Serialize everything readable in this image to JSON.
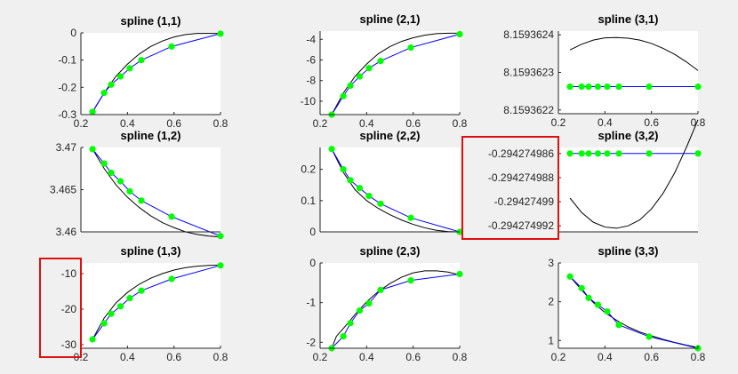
{
  "figure": {
    "background": "#f0f0f0",
    "colors": {
      "curve": "#000000",
      "interp": "#0000ff",
      "marker": "#00ff00",
      "highlight": "#e01010"
    }
  },
  "chart_data": [
    {
      "type": "line",
      "title": "spline (1,1)",
      "xlim": [
        0.2,
        0.8
      ],
      "ylim": [
        -0.3,
        0
      ],
      "xticks": [
        "0.2",
        "0.4",
        "0.6",
        "0.8"
      ],
      "xtick_values": [
        0.2,
        0.4,
        0.6,
        0.8
      ],
      "yticks": [
        "0",
        "-0.1",
        "-0.2",
        "-0.3"
      ],
      "ytick_values": [
        0,
        -0.1,
        -0.2,
        -0.3
      ],
      "series": [
        {
          "kind": "curve",
          "x": [
            0.25,
            0.3,
            0.35,
            0.4,
            0.45,
            0.5,
            0.55,
            0.6,
            0.65,
            0.7,
            0.75,
            0.8
          ],
          "y": [
            -0.29,
            -0.22,
            -0.16,
            -0.115,
            -0.078,
            -0.05,
            -0.03,
            -0.015,
            -0.006,
            -0.002,
            -0.002,
            -0.002
          ]
        },
        {
          "kind": "points",
          "x": [
            0.25,
            0.3,
            0.33,
            0.37,
            0.41,
            0.46,
            0.59,
            0.8
          ],
          "y": [
            -0.29,
            -0.22,
            -0.19,
            -0.16,
            -0.13,
            -0.1,
            -0.05,
            -0.003
          ]
        }
      ]
    },
    {
      "type": "line",
      "title": "spline (2,1)",
      "xlim": [
        0.2,
        0.8
      ],
      "ylim": [
        -11.3,
        -3.2
      ],
      "xticks": [
        "0.2",
        "0.4",
        "0.6",
        "0.8"
      ],
      "xtick_values": [
        0.2,
        0.4,
        0.6,
        0.8
      ],
      "yticks": [
        "-4",
        "-6",
        "-8",
        "-10"
      ],
      "ytick_values": [
        -4,
        -6,
        -8,
        -10
      ],
      "series": [
        {
          "kind": "curve",
          "x": [
            0.25,
            0.3,
            0.35,
            0.4,
            0.45,
            0.5,
            0.55,
            0.6,
            0.65,
            0.7,
            0.75,
            0.8
          ],
          "y": [
            -11.3,
            -9.2,
            -7.6,
            -6.4,
            -5.4,
            -4.7,
            -4.2,
            -3.85,
            -3.6,
            -3.45,
            -3.4,
            -3.4
          ]
        },
        {
          "kind": "points",
          "x": [
            0.25,
            0.3,
            0.33,
            0.37,
            0.41,
            0.46,
            0.59,
            0.8
          ],
          "y": [
            -11.3,
            -9.5,
            -8.5,
            -7.6,
            -6.8,
            -6.1,
            -4.8,
            -3.5
          ]
        }
      ]
    },
    {
      "type": "line",
      "title": "spline (3,1)",
      "xlim": [
        0.2,
        0.8
      ],
      "ylim": [
        8.15936219,
        8.15936241
      ],
      "xticks": [
        "0.2",
        "0.4",
        "0.6",
        "0.8"
      ],
      "xtick_values": [
        0.2,
        0.4,
        0.6,
        0.8
      ],
      "yticks": [
        "8.1593624",
        "8.1593623",
        "8.1593622"
      ],
      "ytick_values": [
        8.1593624,
        8.1593623,
        8.1593622
      ],
      "series": [
        {
          "kind": "curve",
          "x": [
            0.25,
            0.3,
            0.35,
            0.4,
            0.45,
            0.5,
            0.55,
            0.6,
            0.65,
            0.7,
            0.75,
            0.8
          ],
          "y": [
            8.15936236,
            8.159362375,
            8.159362386,
            8.159362392,
            8.159362393,
            8.159362391,
            8.159362386,
            8.159362377,
            8.159362364,
            8.159362348,
            8.159362328,
            8.159362305
          ]
        },
        {
          "kind": "points",
          "x": [
            0.25,
            0.3,
            0.33,
            0.37,
            0.41,
            0.46,
            0.59,
            0.8
          ],
          "y": [
            8.159362262,
            8.159362262,
            8.159362262,
            8.159362262,
            8.159362262,
            8.159362262,
            8.159362262,
            8.159362262
          ]
        }
      ]
    },
    {
      "type": "line",
      "title": "spline (1,2)",
      "xlim": [
        0.2,
        0.8
      ],
      "ylim": [
        3.46,
        3.47
      ],
      "xticks": [],
      "xtick_values": [],
      "yticks": [
        "3.47",
        "3.465",
        "3.46"
      ],
      "ytick_values": [
        3.47,
        3.465,
        3.46
      ],
      "series": [
        {
          "kind": "curve",
          "x": [
            0.25,
            0.3,
            0.35,
            0.4,
            0.45,
            0.5,
            0.55,
            0.6,
            0.65,
            0.7,
            0.75,
            0.8
          ],
          "y": [
            3.4698,
            3.4675,
            3.4656,
            3.4641,
            3.4629,
            3.4619,
            3.4611,
            3.4605,
            3.46,
            3.4597,
            3.4595,
            3.4594
          ]
        },
        {
          "kind": "points",
          "x": [
            0.25,
            0.3,
            0.33,
            0.37,
            0.41,
            0.46,
            0.59,
            0.8
          ],
          "y": [
            3.4698,
            3.4681,
            3.467,
            3.466,
            3.4648,
            3.4637,
            3.4618,
            3.4595
          ]
        }
      ]
    },
    {
      "type": "line",
      "title": "spline (2,2)",
      "xlim": [
        0.2,
        0.8
      ],
      "ylim": [
        0,
        0.27
      ],
      "xticks": [],
      "xtick_values": [],
      "yticks": [
        "0.2",
        "0.1",
        "0"
      ],
      "ytick_values": [
        0.2,
        0.1,
        0
      ],
      "series": [
        {
          "kind": "curve",
          "x": [
            0.25,
            0.3,
            0.35,
            0.4,
            0.45,
            0.5,
            0.55,
            0.6,
            0.65,
            0.7,
            0.75,
            0.8
          ],
          "y": [
            0.265,
            0.19,
            0.135,
            0.1,
            0.075,
            0.055,
            0.038,
            0.024,
            0.013,
            0.005,
            0.001,
            0.0
          ]
        },
        {
          "kind": "points",
          "x": [
            0.25,
            0.3,
            0.33,
            0.37,
            0.41,
            0.46,
            0.59,
            0.8
          ],
          "y": [
            0.265,
            0.2,
            0.165,
            0.14,
            0.115,
            0.09,
            0.045,
            0.0
          ]
        }
      ]
    },
    {
      "type": "line",
      "title": "spline (3,2)",
      "xlim": [
        0.2,
        0.8
      ],
      "ylim": [
        -0.2942749925,
        -0.2942749855
      ],
      "xticks": [],
      "xtick_values": [],
      "yticks": [
        "-0.294274986",
        "-0.294274988",
        "-0.29427499",
        "-0.294274992"
      ],
      "ytick_values": [
        -0.294274986,
        -0.294274988,
        -0.29427499,
        -0.294274992
      ],
      "series": [
        {
          "kind": "curve",
          "x": [
            0.25,
            0.3,
            0.35,
            0.4,
            0.45,
            0.5,
            0.55,
            0.6,
            0.65,
            0.7,
            0.75,
            0.8
          ],
          "y": [
            -0.2942749897,
            -0.2942749909,
            -0.2942749917,
            -0.2942749921,
            -0.2942749922,
            -0.294274992,
            -0.2942749915,
            -0.2942749906,
            -0.2942749893,
            -0.2942749876,
            -0.2942749855,
            -0.2942749832
          ]
        },
        {
          "kind": "points",
          "x": [
            0.25,
            0.3,
            0.33,
            0.37,
            0.41,
            0.46,
            0.59,
            0.8
          ],
          "y": [
            -0.294274986,
            -0.294274986,
            -0.294274986,
            -0.294274986,
            -0.294274986,
            -0.294274986,
            -0.294274986,
            -0.294274986
          ]
        }
      ]
    },
    {
      "type": "line",
      "title": "spline (1,3)",
      "xlim": [
        0.2,
        0.8
      ],
      "ylim": [
        -31,
        -7
      ],
      "xticks": [
        "0.2",
        "0.4",
        "0.6",
        "0.8"
      ],
      "xtick_values": [
        0.2,
        0.4,
        0.6,
        0.8
      ],
      "yticks": [
        "-10",
        "-20",
        "-30"
      ],
      "ytick_values": [
        -10,
        -20,
        -30
      ],
      "series": [
        {
          "kind": "curve",
          "x": [
            0.25,
            0.3,
            0.35,
            0.4,
            0.45,
            0.5,
            0.55,
            0.6,
            0.65,
            0.7,
            0.75,
            0.8
          ],
          "y": [
            -28.5,
            -22.5,
            -18.3,
            -15.3,
            -13.0,
            -11.3,
            -10.0,
            -9.0,
            -8.3,
            -7.9,
            -7.7,
            -7.6
          ]
        },
        {
          "kind": "points",
          "x": [
            0.25,
            0.3,
            0.33,
            0.37,
            0.41,
            0.46,
            0.59,
            0.8
          ],
          "y": [
            -28.5,
            -24.0,
            -21.3,
            -19.2,
            -16.9,
            -14.8,
            -11.5,
            -7.7
          ]
        }
      ]
    },
    {
      "type": "line",
      "title": "spline (2,3)",
      "xlim": [
        0.2,
        0.8
      ],
      "ylim": [
        -2.15,
        0
      ],
      "xticks": [
        "0.2",
        "0.4",
        "0.6",
        "0.8"
      ],
      "xtick_values": [
        0.2,
        0.4,
        0.6,
        0.8
      ],
      "yticks": [
        "0",
        "-1",
        "-2"
      ],
      "ytick_values": [
        0,
        -1,
        -2
      ],
      "series": [
        {
          "kind": "curve",
          "x": [
            0.25,
            0.27,
            0.3,
            0.35,
            0.4,
            0.45,
            0.5,
            0.55,
            0.6,
            0.65,
            0.7,
            0.75,
            0.8
          ],
          "y": [
            -2.15,
            -1.85,
            -1.65,
            -1.3,
            -0.98,
            -0.72,
            -0.52,
            -0.36,
            -0.25,
            -0.2,
            -0.2,
            -0.23,
            -0.3
          ]
        },
        {
          "kind": "points",
          "x": [
            0.25,
            0.3,
            0.33,
            0.37,
            0.41,
            0.46,
            0.59,
            0.8
          ],
          "y": [
            -2.15,
            -1.85,
            -1.52,
            -1.2,
            -1.02,
            -0.68,
            -0.44,
            -0.28
          ]
        }
      ]
    },
    {
      "type": "line",
      "title": "spline (3,3)",
      "xlim": [
        0.2,
        0.8
      ],
      "ylim": [
        0.8,
        3.0
      ],
      "xticks": [
        "0.2",
        "0.4",
        "0.6",
        "0.8"
      ],
      "xtick_values": [
        0.2,
        0.4,
        0.6,
        0.8
      ],
      "yticks": [
        "3",
        "2",
        "1"
      ],
      "ytick_values": [
        3,
        2,
        1
      ],
      "series": [
        {
          "kind": "curve",
          "x": [
            0.25,
            0.3,
            0.35,
            0.4,
            0.45,
            0.5,
            0.55,
            0.6,
            0.65,
            0.7,
            0.75,
            0.8
          ],
          "y": [
            2.65,
            2.3,
            1.98,
            1.72,
            1.52,
            1.35,
            1.22,
            1.12,
            1.03,
            0.95,
            0.88,
            0.82
          ]
        },
        {
          "kind": "points",
          "x": [
            0.25,
            0.3,
            0.33,
            0.37,
            0.41,
            0.46,
            0.59,
            0.8
          ],
          "y": [
            2.65,
            2.35,
            2.1,
            1.92,
            1.75,
            1.4,
            1.1,
            0.8
          ]
        }
      ]
    }
  ]
}
